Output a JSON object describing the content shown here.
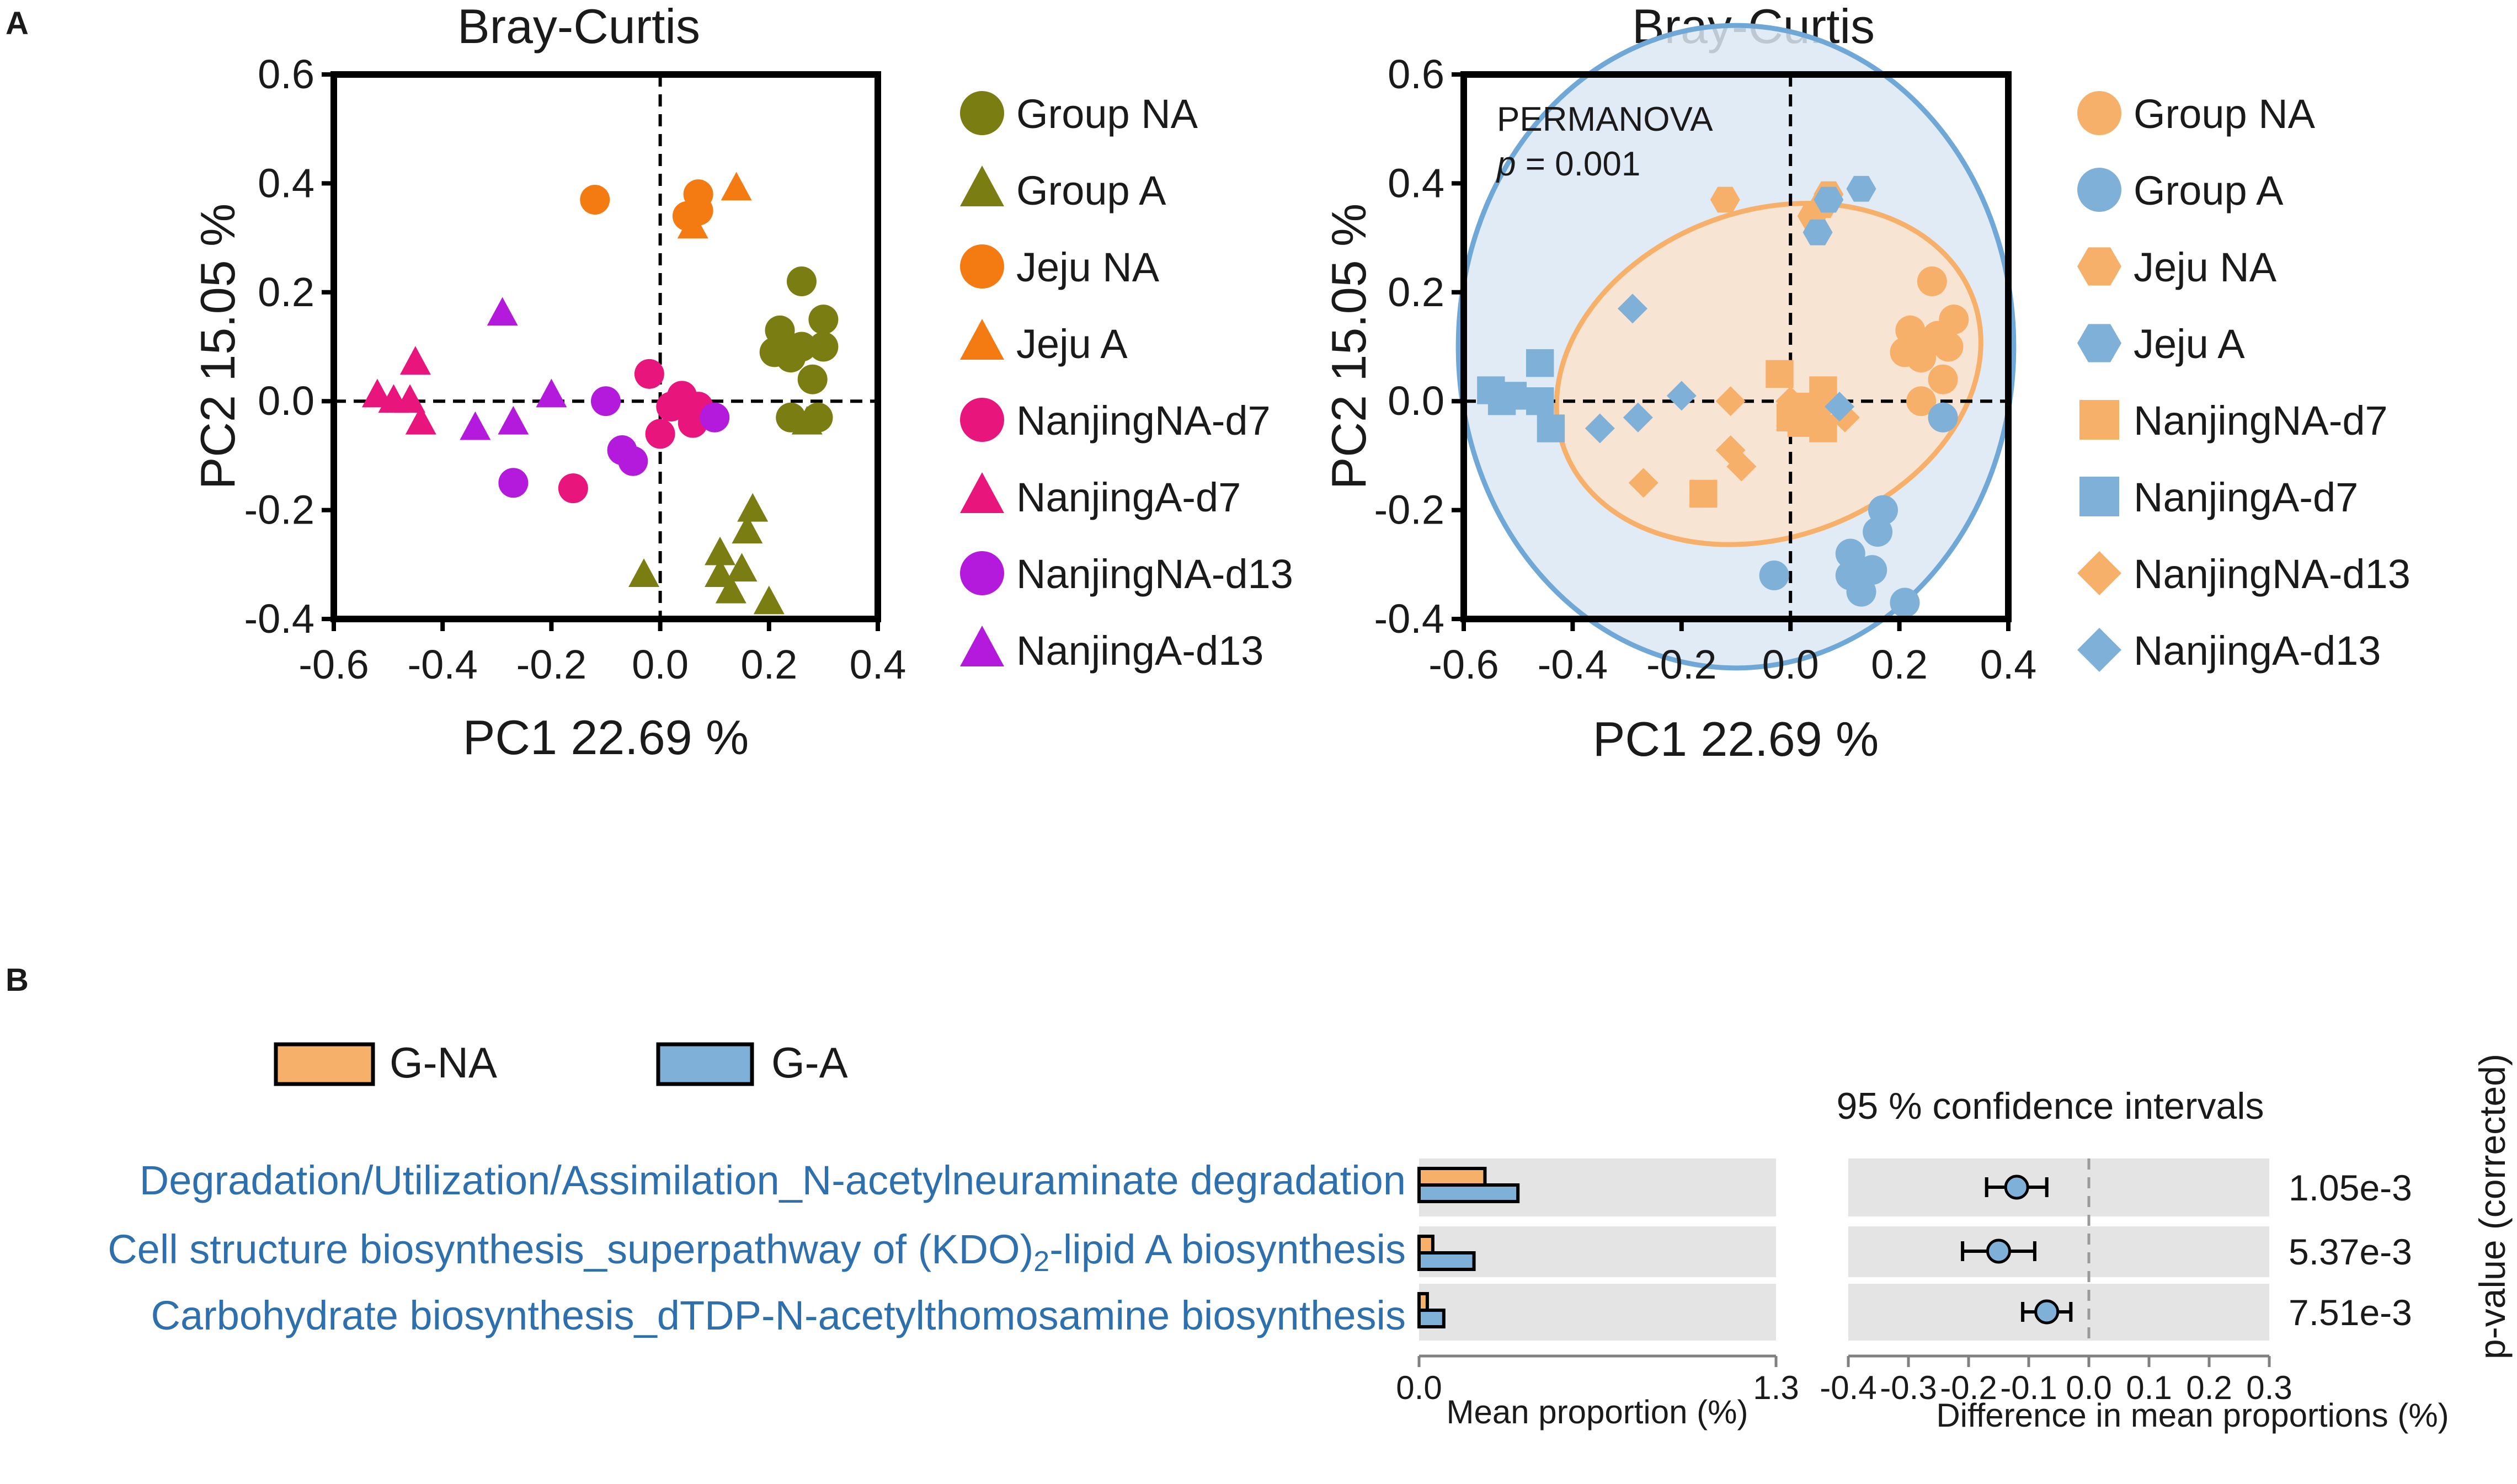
{
  "panel_labels": {
    "a": "A",
    "b": "B"
  },
  "chart_data": [
    {
      "type": "scatter",
      "title": "Bray-Curtis",
      "xlabel": "PC1 22.69 %",
      "ylabel": "PC2 15.05 %",
      "xlim": [
        -0.6,
        0.4
      ],
      "ylim": [
        -0.4,
        0.6
      ],
      "xticks": [
        "-0.6",
        "-0.4",
        "-0.2",
        "0.0",
        "0.2",
        "0.4"
      ],
      "yticks": [
        "-0.4",
        "-0.2",
        "0.0",
        "0.2",
        "0.4",
        "0.6"
      ],
      "reference_lines": {
        "x": 0,
        "y": 0
      },
      "legend": [
        {
          "label": "Group NA",
          "color": "#7a7d12",
          "shape": "circle"
        },
        {
          "label": "Group A",
          "color": "#7a7d12",
          "shape": "triangle"
        },
        {
          "label": "Jeju NA",
          "color": "#f47b12",
          "shape": "circle"
        },
        {
          "label": "Jeju A",
          "color": "#f47b12",
          "shape": "triangle"
        },
        {
          "label": "NanjingNA-d7",
          "color": "#e8157d",
          "shape": "circle"
        },
        {
          "label": "NanjingA-d7",
          "color": "#e8157d",
          "shape": "triangle"
        },
        {
          "label": "NanjingNA-d13",
          "color": "#b41adb",
          "shape": "circle"
        },
        {
          "label": "NanjingA-d13",
          "color": "#b41adb",
          "shape": "triangle"
        }
      ],
      "series": [
        {
          "name": "Group NA",
          "color": "#7a7d12",
          "shape": "circle",
          "points": [
            [
              0.26,
              0.22
            ],
            [
              0.3,
              0.15
            ],
            [
              0.22,
              0.13
            ],
            [
              0.26,
              0.1
            ],
            [
              0.24,
              0.08
            ],
            [
              0.3,
              0.1
            ],
            [
              0.21,
              0.09
            ],
            [
              0.28,
              0.04
            ],
            [
              0.24,
              -0.03
            ],
            [
              0.29,
              -0.03
            ]
          ]
        },
        {
          "name": "Group A",
          "color": "#7a7d12",
          "shape": "triangle",
          "points": [
            [
              0.17,
              -0.2
            ],
            [
              0.16,
              -0.24
            ],
            [
              0.11,
              -0.28
            ],
            [
              0.15,
              -0.31
            ],
            [
              0.11,
              -0.32
            ],
            [
              0.13,
              -0.35
            ],
            [
              0.2,
              -0.37
            ],
            [
              0.27,
              -0.04
            ],
            [
              -0.03,
              -0.32
            ]
          ]
        },
        {
          "name": "Jeju NA",
          "color": "#f47b12",
          "shape": "circle",
          "points": [
            [
              -0.12,
              0.37
            ],
            [
              0.07,
              0.38
            ],
            [
              0.05,
              0.34
            ],
            [
              0.07,
              0.35
            ]
          ]
        },
        {
          "name": "Jeju A",
          "color": "#f47b12",
          "shape": "triangle",
          "points": [
            [
              0.14,
              0.39
            ],
            [
              0.06,
              0.32
            ]
          ]
        },
        {
          "name": "NanjingNA-d7",
          "color": "#e8157d",
          "shape": "circle",
          "points": [
            [
              -0.02,
              0.05
            ],
            [
              0.04,
              0.01
            ],
            [
              0.02,
              -0.01
            ],
            [
              0.07,
              -0.01
            ],
            [
              0.06,
              -0.04
            ],
            [
              0.0,
              -0.06
            ],
            [
              -0.16,
              -0.16
            ]
          ]
        },
        {
          "name": "NanjingA-d7",
          "color": "#e8157d",
          "shape": "triangle",
          "points": [
            [
              -0.52,
              0.01
            ],
            [
              -0.49,
              0.0
            ],
            [
              -0.45,
              0.07
            ],
            [
              -0.46,
              0.0
            ],
            [
              -0.44,
              -0.04
            ]
          ]
        },
        {
          "name": "NanjingNA-d13",
          "color": "#b41adb",
          "shape": "circle",
          "points": [
            [
              -0.1,
              0.0
            ],
            [
              -0.07,
              -0.09
            ],
            [
              -0.05,
              -0.11
            ],
            [
              0.1,
              -0.03
            ],
            [
              -0.27,
              -0.15
            ]
          ]
        },
        {
          "name": "NanjingA-d13",
          "color": "#b41adb",
          "shape": "triangle",
          "points": [
            [
              -0.29,
              0.16
            ],
            [
              -0.2,
              0.01
            ],
            [
              -0.27,
              -0.04
            ],
            [
              -0.34,
              -0.05
            ]
          ]
        }
      ]
    },
    {
      "type": "scatter",
      "title": "Bray-Curtis",
      "xlabel": "PC1 22.69 %",
      "ylabel": "PC2 15.05 %",
      "xlim": [
        -0.6,
        0.4
      ],
      "ylim": [
        -0.4,
        0.6
      ],
      "xticks": [
        "-0.6",
        "-0.4",
        "-0.2",
        "0.0",
        "0.2",
        "0.4"
      ],
      "yticks": [
        "-0.4",
        "-0.2",
        "0.0",
        "0.2",
        "0.4",
        "0.6"
      ],
      "reference_lines": {
        "x": 0,
        "y": 0
      },
      "annotation": {
        "line1": "PERMANOVA",
        "p_symbol": "p",
        "p_rest": " = 0.001"
      },
      "ellipses": [
        {
          "group": "Group A",
          "color": "#6fa8d6",
          "fill": "#dbe8f5",
          "center": [
            -0.1,
            0.1
          ],
          "radius_x": 0.51,
          "radius_y": 0.59
        },
        {
          "group": "Group NA",
          "color": "#f6b06a",
          "fill": "#fbe3cc",
          "center": [
            -0.04,
            0.05
          ],
          "radius_x": 0.4,
          "radius_y": 0.3
        }
      ],
      "legend": [
        {
          "label": "Group NA",
          "color": "#f6b06a",
          "shape": "circle"
        },
        {
          "label": "Group A",
          "color": "#7fb0d8",
          "shape": "circle"
        },
        {
          "label": "Jeju NA",
          "color": "#f6b06a",
          "shape": "hexagon"
        },
        {
          "label": "Jeju A",
          "color": "#7fb0d8",
          "shape": "hexagon"
        },
        {
          "label": "NanjingNA-d7",
          "color": "#f6b06a",
          "shape": "square"
        },
        {
          "label": "NanjingA-d7",
          "color": "#7fb0d8",
          "shape": "square"
        },
        {
          "label": "NanjingNA-d13",
          "color": "#f6b06a",
          "shape": "diamond"
        },
        {
          "label": "NanjingA-d13",
          "color": "#7fb0d8",
          "shape": "diamond"
        }
      ],
      "series": [
        {
          "name": "Group NA",
          "color": "#f6b06a",
          "shape": "circle",
          "points": [
            [
              0.26,
              0.22
            ],
            [
              0.3,
              0.15
            ],
            [
              0.22,
              0.13
            ],
            [
              0.26,
              0.11
            ],
            [
              0.24,
              0.08
            ],
            [
              0.29,
              0.1
            ],
            [
              0.21,
              0.09
            ],
            [
              0.28,
              0.04
            ],
            [
              0.24,
              0.0
            ],
            [
              0.28,
              -0.03
            ],
            [
              0.27,
              0.12
            ]
          ]
        },
        {
          "name": "Group A",
          "color": "#7fb0d8",
          "shape": "circle",
          "points": [
            [
              0.17,
              -0.2
            ],
            [
              0.16,
              -0.24
            ],
            [
              0.11,
              -0.28
            ],
            [
              0.15,
              -0.31
            ],
            [
              0.11,
              -0.32
            ],
            [
              0.13,
              -0.35
            ],
            [
              0.21,
              -0.37
            ],
            [
              -0.03,
              -0.32
            ],
            [
              0.28,
              -0.03
            ]
          ]
        },
        {
          "name": "Jeju NA",
          "color": "#f6b06a",
          "shape": "hexagon",
          "points": [
            [
              -0.12,
              0.37
            ],
            [
              0.07,
              0.38
            ],
            [
              0.04,
              0.34
            ],
            [
              0.06,
              0.36
            ]
          ]
        },
        {
          "name": "Jeju A",
          "color": "#7fb0d8",
          "shape": "hexagon",
          "points": [
            [
              0.13,
              0.39
            ],
            [
              0.05,
              0.31
            ],
            [
              0.07,
              0.37
            ]
          ]
        },
        {
          "name": "NanjingNA-d7",
          "color": "#f6b06a",
          "shape": "square",
          "points": [
            [
              -0.02,
              0.05
            ],
            [
              0.06,
              0.02
            ],
            [
              0.02,
              -0.01
            ],
            [
              0.04,
              -0.03
            ],
            [
              0.06,
              -0.05
            ],
            [
              0.0,
              -0.03
            ],
            [
              0.02,
              -0.04
            ],
            [
              -0.16,
              -0.17
            ]
          ]
        },
        {
          "name": "NanjingA-d7",
          "color": "#7fb0d8",
          "shape": "square",
          "points": [
            [
              -0.55,
              0.02
            ],
            [
              -0.51,
              0.01
            ],
            [
              -0.46,
              0.07
            ],
            [
              -0.46,
              0.0
            ],
            [
              -0.44,
              -0.05
            ],
            [
              -0.53,
              0.0
            ]
          ]
        },
        {
          "name": "NanjingNA-d13",
          "color": "#f6b06a",
          "shape": "diamond",
          "points": [
            [
              -0.11,
              -0.09
            ],
            [
              -0.09,
              -0.12
            ],
            [
              -0.11,
              0.0
            ],
            [
              0.1,
              -0.03
            ],
            [
              0.06,
              -0.01
            ],
            [
              -0.27,
              -0.15
            ],
            [
              0.0,
              0.0
            ]
          ]
        },
        {
          "name": "NanjingA-d13",
          "color": "#7fb0d8",
          "shape": "diamond",
          "points": [
            [
              -0.29,
              0.17
            ],
            [
              -0.2,
              0.01
            ],
            [
              -0.28,
              -0.03
            ],
            [
              -0.35,
              -0.05
            ],
            [
              0.09,
              -0.01
            ]
          ]
        }
      ]
    },
    {
      "type": "bar",
      "orientation": "horizontal",
      "legend": [
        {
          "label": "G-NA",
          "color": "#f6b06a"
        },
        {
          "label": "G-A",
          "color": "#7fb0d8"
        }
      ],
      "categories": [
        {
          "prefix": "Degradation/Utilization/Assimilation_N-acetylneuraminate degradation",
          "sub": "",
          "suffix": ""
        },
        {
          "prefix": "Cell structure biosynthesis_superpathway of (KDO)",
          "sub": "2",
          "suffix": "-lipid A biosynthesis"
        },
        {
          "prefix": "Carbohydrate biosynthesis_dTDP-N-acetylthomosamine biosynthesis",
          "sub": "",
          "suffix": ""
        }
      ],
      "series": [
        {
          "name": "G-NA",
          "values": [
            0.24,
            0.05,
            0.03
          ]
        },
        {
          "name": "G-A",
          "values": [
            0.36,
            0.2,
            0.09
          ]
        }
      ],
      "xlim": [
        0.0,
        1.3
      ],
      "xticks": [
        "0.0",
        "1.3"
      ],
      "xlabel": "Mean proportion (%)"
    },
    {
      "type": "scatter",
      "subtype": "confidence-interval",
      "title": "95 % confidence intervals",
      "xlabel": "Difference in mean proportions (%)",
      "xlim": [
        -0.4,
        0.3
      ],
      "xticks": [
        "-0.4",
        "-0.3",
        "-0.2",
        "-0.1",
        "0.0",
        "0.1",
        "0.2",
        "0.3"
      ],
      "effects": [
        {
          "estimate": -0.12,
          "ci": [
            -0.17,
            -0.07
          ]
        },
        {
          "estimate": -0.15,
          "ci": [
            -0.21,
            -0.09
          ]
        },
        {
          "estimate": -0.07,
          "ci": [
            -0.11,
            -0.03
          ]
        }
      ],
      "p_values": [
        "1.05e-3",
        "5.37e-3",
        "7.51e-3"
      ],
      "p_axis_label": "p-value (corrected)"
    }
  ]
}
